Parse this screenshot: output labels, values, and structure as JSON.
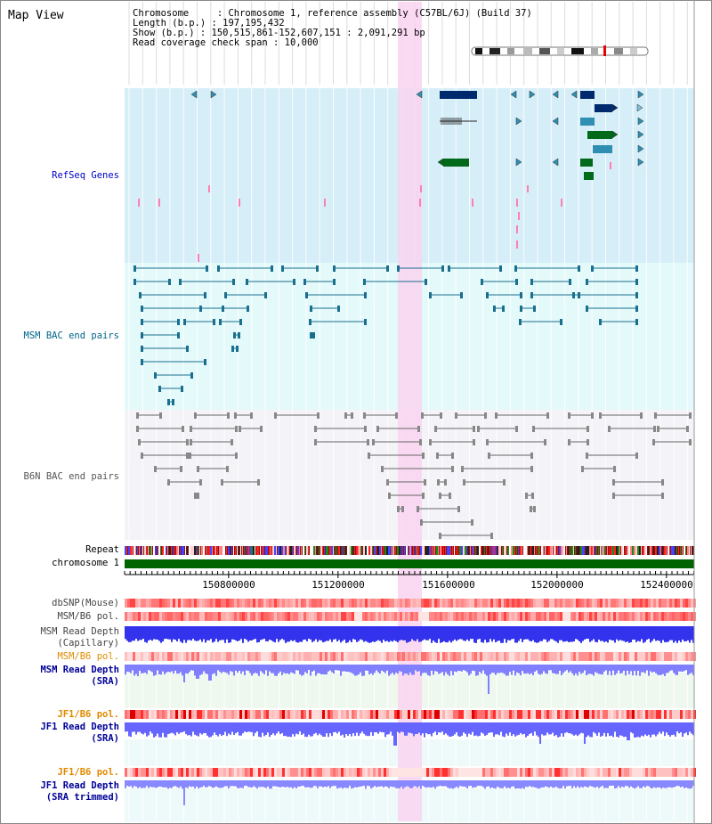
{
  "title": "Map View",
  "info": {
    "chromosome_line": "Chromosome     : Chromosome 1, reference assembly (C57BL/6J) (Build 37)",
    "length_line": "Length (b.p.) : 197,195,432",
    "show_line": "Show (b.p.) : 150,515,861-152,607,151 : 2,091,291 bp",
    "span_line": "Read coverage check span : 10,000"
  },
  "tracks": {
    "refseq": "RefSeq Genes",
    "msm_bac": "MSM BAC end pairs",
    "b6n_bac": "B6N BAC end pairs",
    "repeat": "Repeat",
    "chromosome": "chromosome 1",
    "dbsnp": "dbSNP(Mouse)",
    "msm_b6_pol_1": "MSM/B6 pol.",
    "msm_depth_cap_1": "MSM Read Depth",
    "msm_depth_cap_2": "(Capillary)",
    "msm_b6_pol_2": "MSM/B6 pol.",
    "msm_depth_sra_1": "MSM Read Depth",
    "msm_depth_sra_2": "(SRA)",
    "jf1_pol_1": "JF1/B6 pol.",
    "jf1_depth_sra_1": "JF1 Read Depth",
    "jf1_depth_sra_2": "(SRA)",
    "jf1_pol_2": "JF1/B6 pol.",
    "jf1_depth_trim_1": "JF1 Read Depth",
    "jf1_depth_trim_2": "(SRA trimmed)"
  },
  "ruler_ticks": [
    "150800000",
    "151200000",
    "151600000",
    "152000000",
    "152400000"
  ],
  "colors": {
    "refseq_label": "#0000cc",
    "msm_bac_label": "#006688",
    "b6n_bac_label": "#555555",
    "sra_label": "#000099",
    "pol_orange_label": "#e08a00",
    "highlight": "#f9d4f0",
    "refseq_bg": "#d6eef8",
    "msm_bac_bg": "#e4fafa",
    "chromosome_bar": "#006400",
    "depth_blue": "#3333ff"
  }
}
